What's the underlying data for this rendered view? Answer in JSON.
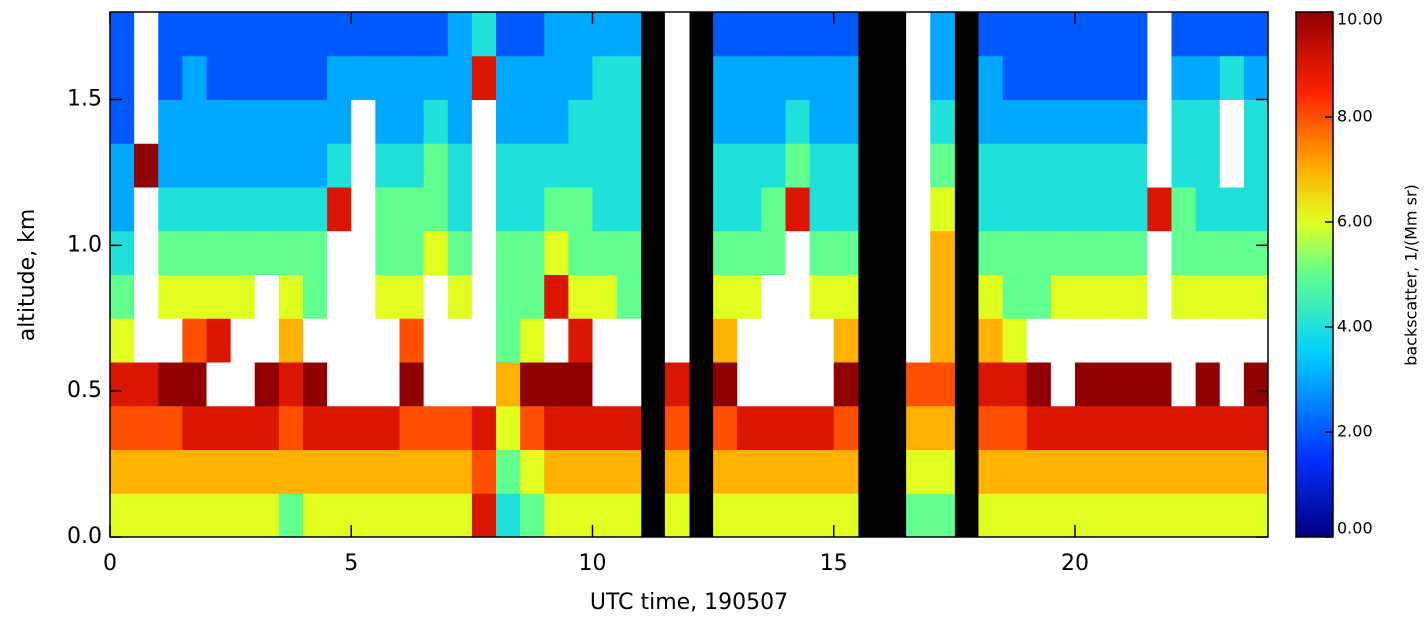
{
  "chart_data": {
    "type": "heatmap",
    "x_label": "UTC time, 190507",
    "y_label": "altitude, km",
    "colorbar_label": "backscatter, 1/(Mm sr)",
    "xlim": [
      0,
      24
    ],
    "xticks": [
      0,
      5,
      10,
      15,
      20
    ],
    "ylim": [
      0,
      1.8
    ],
    "yticks": [
      {
        "value": 0,
        "label": "0.0"
      },
      {
        "value": 0.5,
        "label": "0.5"
      },
      {
        "value": 1,
        "label": "1.0"
      },
      {
        "value": 1.5,
        "label": "1.5"
      }
    ],
    "zlim": [
      0,
      10
    ],
    "zticks": [
      {
        "value": 0,
        "label": "0.00"
      },
      {
        "value": 2,
        "label": "2.00"
      },
      {
        "value": 4,
        "label": "4.00"
      },
      {
        "value": 6,
        "label": "6.00"
      },
      {
        "value": 8,
        "label": "8.00"
      },
      {
        "value": 10,
        "label": "10.00"
      }
    ],
    "colorscale": [
      [
        0,
        "#000080"
      ],
      [
        1.5,
        "#0030ff"
      ],
      [
        3.5,
        "#00d0ff"
      ],
      [
        5,
        "#60ff90"
      ],
      [
        6,
        "#e0ff20"
      ],
      [
        7,
        "#ffb000"
      ],
      [
        8.5,
        "#ff2000"
      ],
      [
        10,
        "#900000"
      ]
    ],
    "over_color": "#ffffff",
    "missing_color": "#000000",
    "x_edges": [
      0,
      0.5,
      1,
      1.5,
      2,
      2.5,
      3,
      3.5,
      4,
      4.5,
      5,
      5.5,
      6,
      6.5,
      7,
      7.5,
      8,
      8.5,
      9,
      9.5,
      10,
      10.5,
      11,
      11.5,
      12,
      12.5,
      13,
      13.5,
      14,
      14.5,
      15,
      15.5,
      16,
      16.5,
      17,
      17.5,
      18,
      18.5,
      19,
      19.5,
      20,
      20.5,
      21,
      21.5,
      22,
      22.5,
      23,
      23.5,
      24
    ],
    "y_edges": [
      0,
      0.15,
      0.3,
      0.45,
      0.6,
      0.75,
      0.9,
      1.05,
      1.2,
      1.35,
      1.5,
      1.65,
      1.8
    ],
    "z": [
      [
        6,
        6,
        6,
        6,
        6,
        6,
        6,
        5,
        6,
        6,
        6,
        6,
        6,
        6,
        6,
        9,
        4,
        5,
        6,
        6,
        6,
        6,
        null,
        6,
        null,
        6,
        6,
        6,
        6,
        6,
        6,
        null,
        null,
        5,
        5,
        null,
        6,
        6,
        6,
        6,
        6,
        6,
        6,
        6,
        6,
        6,
        6,
        6
      ],
      [
        7,
        7,
        7,
        7,
        7,
        7,
        7,
        7,
        7,
        7,
        7,
        7,
        7,
        7,
        7,
        8,
        5,
        6,
        7,
        7,
        7,
        7,
        null,
        7,
        null,
        7,
        7,
        7,
        7,
        7,
        7,
        null,
        null,
        6,
        6,
        null,
        7,
        7,
        7,
        7,
        7,
        7,
        7,
        7,
        7,
        7,
        7,
        7
      ],
      [
        8,
        8,
        8,
        9,
        9,
        9,
        9,
        8,
        9,
        9,
        9,
        9,
        8,
        8,
        8,
        9,
        6,
        8,
        9,
        9,
        9,
        9,
        null,
        8,
        null,
        8,
        9,
        9,
        9,
        9,
        8,
        null,
        null,
        7,
        7,
        null,
        8,
        8,
        9,
        9,
        9,
        9,
        9,
        9,
        9,
        9,
        9,
        9
      ],
      [
        9,
        9,
        10,
        10,
        12,
        12,
        10,
        9,
        10,
        12,
        12,
        12,
        10,
        12,
        12,
        12,
        7,
        10,
        10,
        10,
        12,
        12,
        null,
        9,
        null,
        10,
        12,
        12,
        12,
        12,
        10,
        null,
        null,
        8,
        8,
        null,
        9,
        9,
        10,
        12,
        10,
        10,
        10,
        10,
        12,
        10,
        12,
        10
      ],
      [
        6,
        12,
        12,
        8,
        9,
        12,
        12,
        7,
        12,
        12,
        12,
        12,
        8,
        12,
        12,
        12,
        5,
        6,
        12,
        9,
        12,
        12,
        null,
        12,
        null,
        7,
        12,
        12,
        12,
        12,
        7,
        null,
        null,
        12,
        7,
        null,
        7,
        6,
        12,
        12,
        12,
        12,
        12,
        12,
        12,
        12,
        12,
        12
      ],
      [
        5,
        12,
        6,
        6,
        6,
        6,
        12,
        6,
        5,
        12,
        12,
        6,
        6,
        12,
        6,
        12,
        5,
        5,
        9,
        6,
        6,
        5,
        null,
        12,
        null,
        6,
        6,
        12,
        12,
        6,
        6,
        null,
        null,
        12,
        7,
        null,
        6,
        5,
        5,
        6,
        6,
        6,
        6,
        12,
        6,
        6,
        6,
        6
      ],
      [
        4,
        12,
        5,
        5,
        5,
        5,
        5,
        5,
        5,
        12,
        12,
        5,
        5,
        6,
        5,
        12,
        5,
        5,
        6,
        5,
        5,
        5,
        null,
        12,
        null,
        5,
        5,
        5,
        12,
        5,
        5,
        null,
        null,
        12,
        7,
        null,
        5,
        5,
        5,
        5,
        5,
        5,
        5,
        12,
        5,
        5,
        5,
        5
      ],
      [
        3,
        12,
        4,
        4,
        4,
        4,
        4,
        4,
        4,
        9,
        12,
        5,
        5,
        5,
        4,
        12,
        4,
        4,
        5,
        5,
        4,
        4,
        null,
        12,
        null,
        4,
        4,
        5,
        9,
        4,
        4,
        null,
        null,
        12,
        6,
        null,
        4,
        4,
        4,
        4,
        4,
        4,
        4,
        9,
        5,
        4,
        4,
        4
      ],
      [
        3,
        10,
        3,
        3,
        3,
        3,
        3,
        3,
        3,
        4,
        12,
        4,
        4,
        5,
        4,
        12,
        4,
        4,
        4,
        4,
        4,
        4,
        null,
        12,
        null,
        4,
        4,
        4,
        5,
        4,
        4,
        null,
        null,
        12,
        5,
        null,
        4,
        4,
        4,
        4,
        4,
        4,
        4,
        12,
        4,
        4,
        12,
        4
      ],
      [
        2,
        12,
        3,
        3,
        3,
        3,
        3,
        3,
        3,
        3,
        12,
        3,
        3,
        4,
        3,
        12,
        3,
        3,
        3,
        4,
        4,
        4,
        null,
        12,
        null,
        3,
        3,
        3,
        4,
        3,
        3,
        null,
        null,
        12,
        4,
        null,
        3,
        3,
        3,
        3,
        3,
        3,
        3,
        12,
        4,
        4,
        12,
        4
      ],
      [
        2,
        12,
        2,
        3,
        2,
        2,
        2,
        2,
        2,
        3,
        3,
        3,
        3,
        3,
        3,
        9,
        3,
        3,
        3,
        3,
        4,
        4,
        null,
        12,
        null,
        3,
        3,
        3,
        3,
        3,
        3,
        null,
        null,
        12,
        3,
        null,
        3,
        2,
        2,
        2,
        2,
        2,
        2,
        12,
        3,
        3,
        4,
        3
      ],
      [
        2,
        12,
        2,
        2,
        2,
        2,
        2,
        2,
        2,
        2,
        2,
        2,
        2,
        2,
        3,
        4,
        2,
        2,
        3,
        3,
        3,
        3,
        null,
        12,
        null,
        2,
        2,
        2,
        2,
        2,
        2,
        null,
        null,
        12,
        3,
        null,
        2,
        2,
        2,
        2,
        2,
        2,
        2,
        12,
        2,
        2,
        2,
        2
      ]
    ]
  }
}
